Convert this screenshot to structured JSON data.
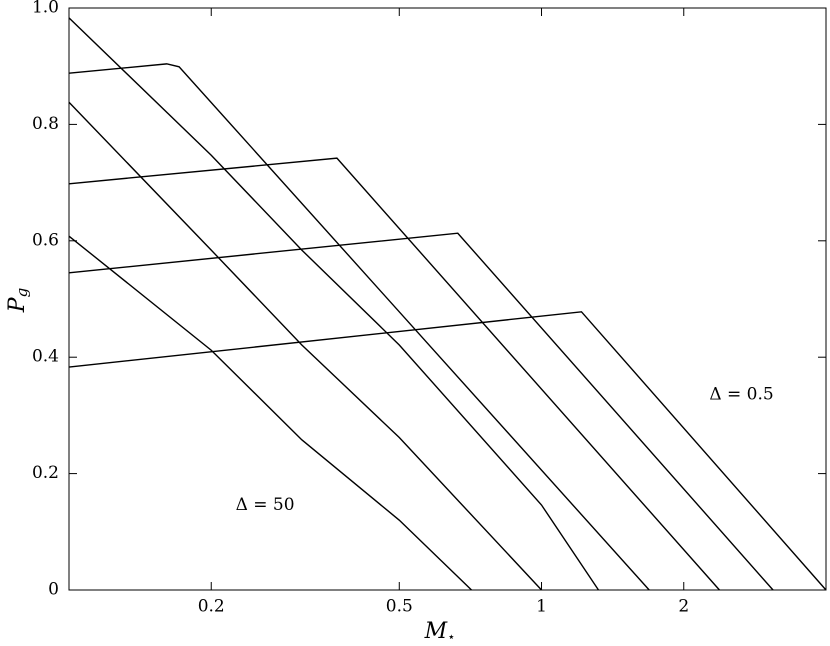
{
  "chart_data": {
    "type": "line",
    "xscale": "log",
    "xlabel": {
      "main": "M",
      "sub": "⋆"
    },
    "ylabel": {
      "main": "P",
      "sub": "g"
    },
    "xlim": [
      0.1,
      4
    ],
    "xticks": [
      0.2,
      0.5,
      1,
      2
    ],
    "ylim": [
      0,
      1
    ],
    "yticks": [
      0,
      0.2,
      0.4,
      0.6,
      0.8,
      {
        "value": 1,
        "label": "1.0"
      }
    ],
    "annotations": [
      {
        "text": "Δ = 50",
        "x": 0.26,
        "y": 0.145
      },
      {
        "text": "Δ = 0.5",
        "x": 2.65,
        "y": 0.335
      }
    ],
    "series": [
      {
        "color": "#000000",
        "x": [
          0.1,
          0.2,
          0.311,
          0.5,
          0.711
        ],
        "values": [
          0.608,
          0.412,
          0.258,
          0.12,
          0
        ]
      },
      {
        "color": "#000000",
        "x": [
          0.1,
          0.2,
          0.311,
          0.5,
          1.0
        ],
        "values": [
          0.838,
          0.584,
          0.421,
          0.262,
          0
        ]
      },
      {
        "color": "#000000",
        "x": [
          0.1,
          0.2,
          0.311,
          0.5,
          1.0,
          1.32
        ],
        "values": [
          0.983,
          0.747,
          0.584,
          0.421,
          0.146,
          0
        ]
      },
      {
        "color": "#000000",
        "x": [
          0.1,
          0.161,
          0.171,
          1.69
        ],
        "values": [
          0.888,
          0.904,
          0.899,
          0
        ]
      },
      {
        "color": "#000000",
        "x": [
          0.1,
          0.369,
          2.38
        ],
        "values": [
          0.698,
          0.742,
          0
        ]
      },
      {
        "color": "#000000",
        "x": [
          0.1,
          0.665,
          3.09
        ],
        "values": [
          0.545,
          0.613,
          0
        ]
      },
      {
        "color": "#000000",
        "x": [
          0.1,
          1.215,
          4.0
        ],
        "values": [
          0.383,
          0.478,
          0
        ]
      }
    ]
  }
}
